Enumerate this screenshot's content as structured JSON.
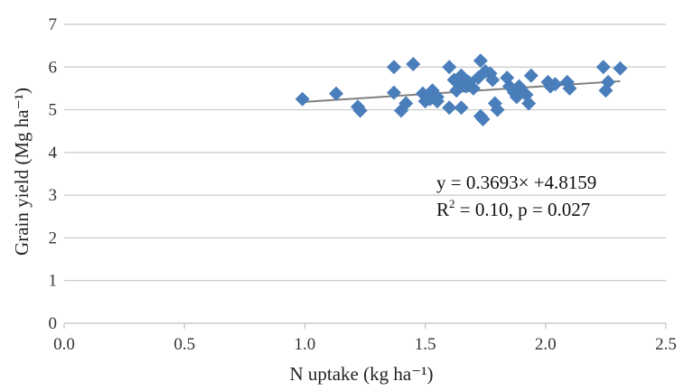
{
  "chart_data": {
    "type": "scatter",
    "xlabel": "N uptake (kg ha⁻¹)",
    "ylabel": "Grain yield (Mg ha⁻¹)",
    "xlim": [
      0,
      2.5
    ],
    "ylim": [
      0,
      7
    ],
    "x_ticks": [
      "0.0",
      "0.5",
      "1.0",
      "1.5",
      "2.0",
      "2.5"
    ],
    "y_ticks": [
      "0",
      "1",
      "2",
      "3",
      "4",
      "5",
      "6",
      "7"
    ],
    "grid": "horizontal",
    "marker": "diamond",
    "marker_color": "#4a7ebb",
    "points": [
      [
        0.99,
        5.25
      ],
      [
        1.13,
        5.38
      ],
      [
        1.22,
        5.07
      ],
      [
        1.23,
        4.98
      ],
      [
        1.37,
        6.0
      ],
      [
        1.37,
        5.4
      ],
      [
        1.4,
        4.98
      ],
      [
        1.42,
        5.15
      ],
      [
        1.45,
        6.07
      ],
      [
        1.49,
        5.38
      ],
      [
        1.5,
        5.2
      ],
      [
        1.52,
        5.25
      ],
      [
        1.53,
        5.45
      ],
      [
        1.55,
        5.3
      ],
      [
        1.55,
        5.2
      ],
      [
        1.6,
        6.0
      ],
      [
        1.6,
        5.05
      ],
      [
        1.62,
        5.7
      ],
      [
        1.63,
        5.45
      ],
      [
        1.64,
        5.6
      ],
      [
        1.65,
        5.05
      ],
      [
        1.65,
        5.8
      ],
      [
        1.67,
        5.55
      ],
      [
        1.68,
        5.65
      ],
      [
        1.7,
        5.5
      ],
      [
        1.72,
        5.75
      ],
      [
        1.73,
        6.15
      ],
      [
        1.73,
        4.85
      ],
      [
        1.74,
        4.78
      ],
      [
        1.75,
        5.9
      ],
      [
        1.77,
        5.85
      ],
      [
        1.78,
        5.7
      ],
      [
        1.79,
        5.15
      ],
      [
        1.8,
        5.0
      ],
      [
        1.84,
        5.75
      ],
      [
        1.85,
        5.55
      ],
      [
        1.87,
        5.4
      ],
      [
        1.88,
        5.3
      ],
      [
        1.89,
        5.55
      ],
      [
        1.9,
        5.45
      ],
      [
        1.92,
        5.35
      ],
      [
        1.93,
        5.15
      ],
      [
        1.94,
        5.8
      ],
      [
        2.01,
        5.65
      ],
      [
        2.02,
        5.55
      ],
      [
        2.04,
        5.6
      ],
      [
        2.09,
        5.65
      ],
      [
        2.1,
        5.5
      ],
      [
        2.24,
        6.0
      ],
      [
        2.25,
        5.45
      ],
      [
        2.26,
        5.65
      ],
      [
        2.31,
        5.97
      ]
    ],
    "trendline": {
      "slope": 0.3693,
      "intercept": 4.8159,
      "x_range": [
        0.99,
        2.31
      ],
      "color": "#7f7f7f"
    },
    "annotation": {
      "line1": "y = 0.3693× +4.8159",
      "line2_prefix": "R",
      "line2_sup": "2",
      "line2_suffix": " = 0.10, p = 0.027"
    }
  }
}
